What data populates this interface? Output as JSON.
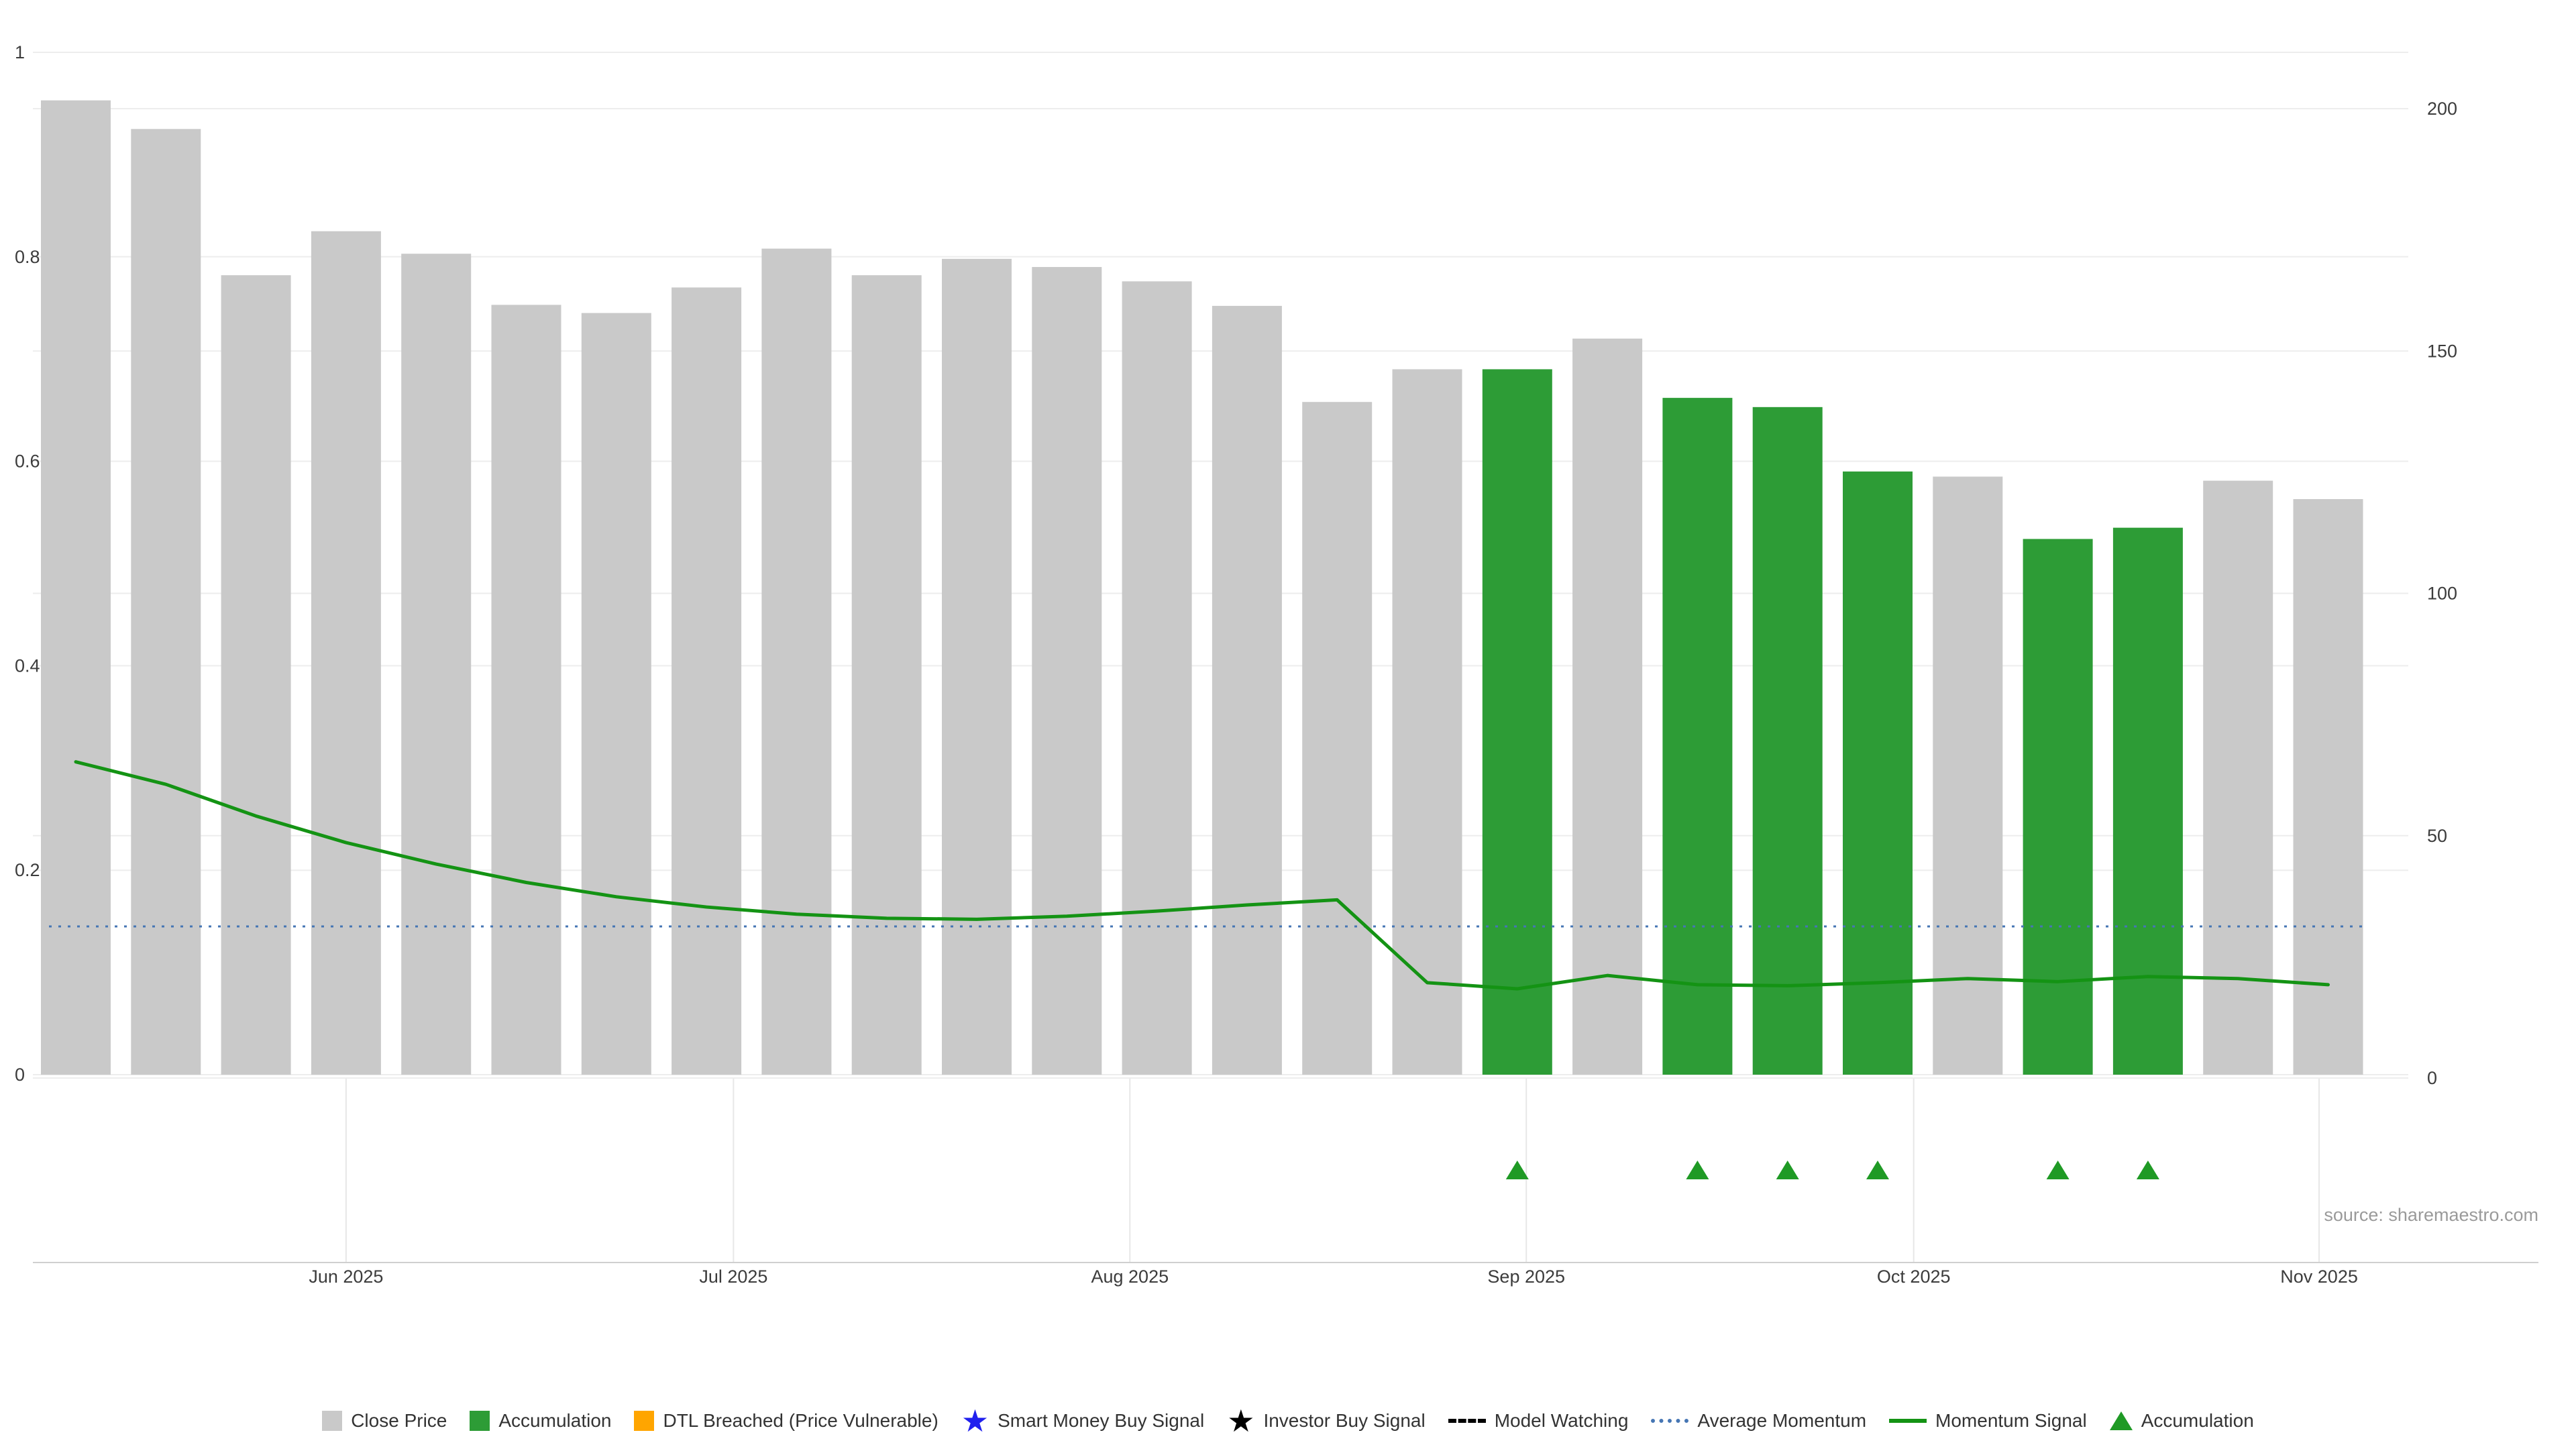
{
  "source": "source: sharemaestro.com",
  "colors": {
    "close_price_bar": "#c9c9c9",
    "accumulation_bar": "#2d9c36",
    "dtl_breached": "#ffa500",
    "smart_money_star": "#2020ee",
    "investor_star": "#000000",
    "model_watching": "#000000",
    "average_momentum_line": "#4676b4",
    "momentum_line": "#149314",
    "accumulation_triangle": "#1f9a25",
    "grid": "#ededed",
    "axis_line": "#cfcfcf",
    "axis_text": "#3c3c3c",
    "source_text": "#9a9a9a"
  },
  "chart_data": {
    "type": "bar",
    "subtype": "weekly close-price bars with momentum line overlay and accumulation signals",
    "x": [
      "2025-05-11",
      "2025-05-18",
      "2025-05-25",
      "2025-06-01",
      "2025-06-08",
      "2025-06-15",
      "2025-06-22",
      "2025-06-29",
      "2025-07-06",
      "2025-07-13",
      "2025-07-20",
      "2025-07-27",
      "2025-08-03",
      "2025-08-10",
      "2025-08-17",
      "2025-08-24",
      "2025-08-31",
      "2025-09-07",
      "2025-09-14",
      "2025-09-21",
      "2025-09-28",
      "2025-10-05",
      "2025-10-12",
      "2025-10-19",
      "2025-10-26",
      "2025-11-02"
    ],
    "close_norm": [
      0.953,
      0.925,
      0.782,
      0.825,
      0.803,
      0.753,
      0.745,
      0.77,
      0.808,
      0.782,
      0.798,
      0.79,
      0.776,
      0.752,
      0.658,
      0.69,
      0.69,
      0.72,
      0.662,
      0.653,
      0.59,
      0.585,
      0.524,
      0.535,
      0.581,
      0.563
    ],
    "close_price_right_axis": [
      200,
      194,
      164,
      173,
      169,
      158,
      156,
      162,
      170,
      164,
      168,
      166,
      163,
      158,
      138,
      145,
      145,
      151,
      139,
      137,
      124,
      123,
      110,
      112,
      122,
      118
    ],
    "accumulation_indices": [
      16,
      18,
      19,
      20,
      22,
      23
    ],
    "momentum_signal": [
      0.306,
      0.284,
      0.253,
      0.227,
      0.206,
      0.188,
      0.174,
      0.164,
      0.157,
      0.153,
      0.152,
      0.155,
      0.16,
      0.166,
      0.171,
      0.09,
      0.084,
      0.097,
      0.088,
      0.087,
      0.09,
      0.094,
      0.091,
      0.096,
      0.094,
      0.088
    ],
    "average_momentum": 0.145,
    "title": "",
    "xlabel": "",
    "ylabel": "",
    "ylim_left": [
      0,
      1
    ],
    "ylim_right": [
      0,
      200
    ],
    "grid": true,
    "legend_position": "bottom"
  },
  "axes": {
    "y_left": {
      "ticks": [
        1,
        0.8,
        0.6,
        0.4,
        0.2,
        0
      ],
      "labels": [
        "1",
        "0.8",
        "0.6",
        "0.4",
        "0.2",
        "0"
      ]
    },
    "y_right": {
      "ticks": [
        200,
        150,
        100,
        50,
        0
      ],
      "labels": [
        "200",
        "150",
        "100",
        "50",
        "0"
      ]
    },
    "x": {
      "tick_labels": [
        "Jun 2025",
        "Jul 2025",
        "Aug 2025",
        "Sep 2025",
        "Oct 2025",
        "Nov 2025"
      ]
    }
  },
  "legend": {
    "items": [
      {
        "label": "Close Price",
        "marker": "square",
        "color": "#c9c9c9"
      },
      {
        "label": "Accumulation",
        "marker": "square",
        "color": "#2d9c36"
      },
      {
        "label": "DTL Breached (Price Vulnerable)",
        "marker": "square",
        "color": "#ffa500"
      },
      {
        "label": "Smart Money Buy Signal",
        "marker": "star",
        "color": "#2020ee"
      },
      {
        "label": "Investor Buy Signal",
        "marker": "star",
        "color": "#000000"
      },
      {
        "label": "Model Watching",
        "marker": "dashed-line",
        "color": "#000000"
      },
      {
        "label": "Average Momentum",
        "marker": "dotted-line",
        "color": "#4676b4"
      },
      {
        "label": "Momentum Signal",
        "marker": "solid-line",
        "color": "#149314"
      },
      {
        "label": "Accumulation",
        "marker": "triangle",
        "color": "#1f9a25"
      }
    ]
  }
}
